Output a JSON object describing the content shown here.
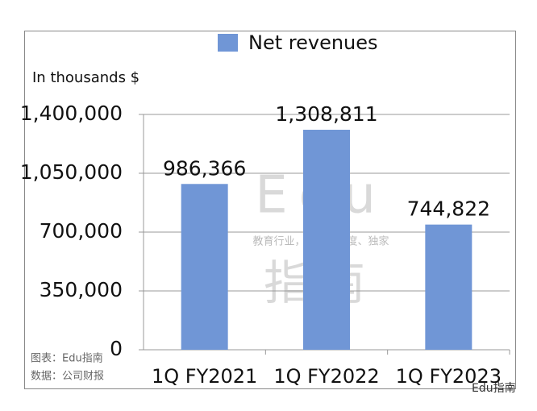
{
  "chart_data": {
    "type": "bar",
    "legend": "Net revenues",
    "y_label": "In thousands $",
    "categories": [
      "1Q FY2021",
      "1Q FY2022",
      "1Q FY2023"
    ],
    "series": [
      {
        "name": "Net revenues",
        "color": "#7096d6",
        "values": [
          986366,
          1308811,
          744822
        ],
        "value_labels": [
          "986,366",
          "1,308,811",
          "744,822"
        ]
      }
    ],
    "ylim": [
      0,
      1400000
    ],
    "yticks": [
      0,
      {
        "value": 350000,
        "label": "350,000"
      },
      {
        "value": 700000,
        "label": "700,000"
      },
      {
        "value": 1050000,
        "label": "1,050,000"
      },
      {
        "value": 1400000,
        "label": "1,400,000"
      }
    ],
    "grid": true,
    "legend_position": "top",
    "watermark": [
      "Edu",
      "教育行业，前沿、深度、独家",
      "指南"
    ],
    "notes": [
      "图表：Edu指南",
      "数据：公司财报"
    ],
    "brand": "Edu指南"
  }
}
